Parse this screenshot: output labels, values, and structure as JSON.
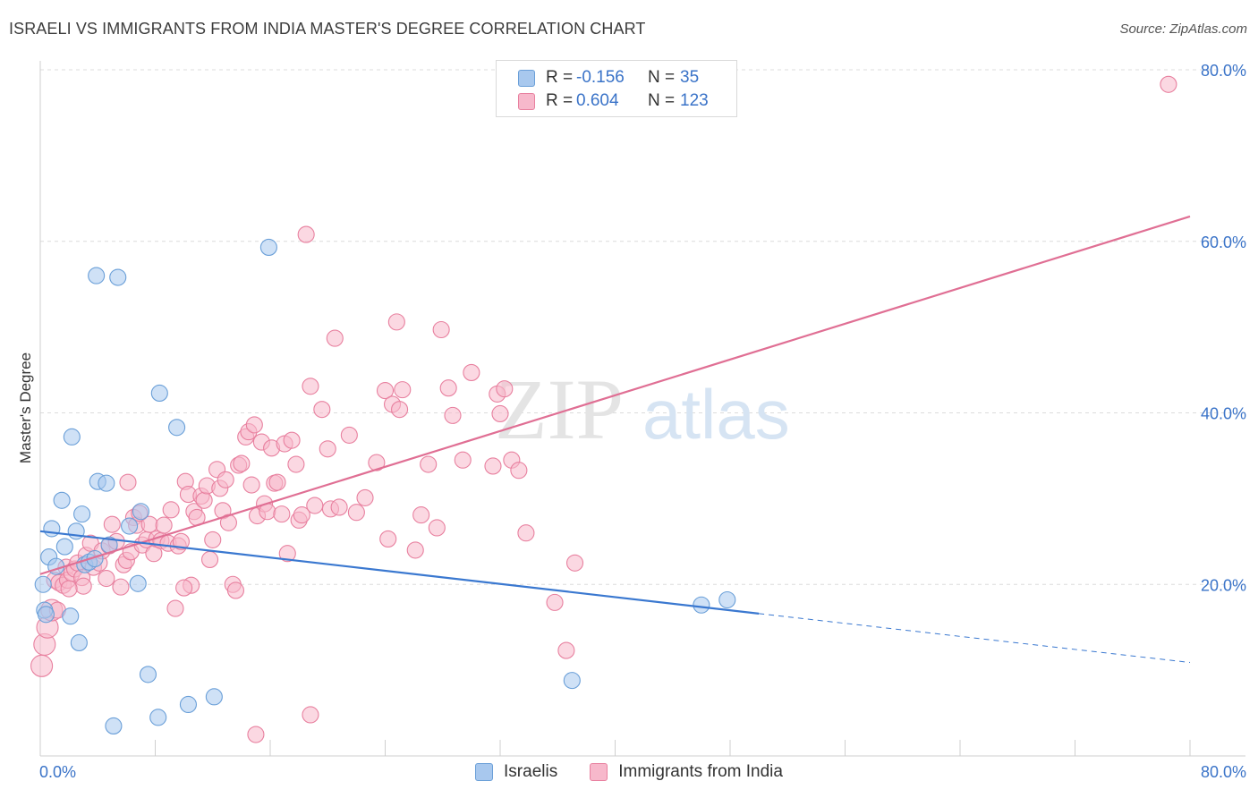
{
  "header": {
    "title": "ISRAELI VS IMMIGRANTS FROM INDIA MASTER'S DEGREE CORRELATION CHART",
    "source": "Source: ZipAtlas.com"
  },
  "watermark": {
    "zip": "ZIP",
    "atlas": "atlas"
  },
  "legend_top": [
    {
      "r_label": "R =",
      "r_value": "-0.156",
      "n_label": "N =",
      "n_value": "35",
      "color": "#a8c8ee",
      "border": "#6a9fd8"
    },
    {
      "r_label": "R =",
      "r_value": "0.604",
      "n_label": "N =",
      "n_value": "123",
      "color": "#f7b8cb",
      "border": "#e8809f"
    }
  ],
  "legend_bottom": [
    {
      "label": "Israelis",
      "color": "#a8c8ee",
      "border": "#6a9fd8"
    },
    {
      "label": "Immigrants from India",
      "color": "#f7b8cb",
      "border": "#e8809f"
    }
  ],
  "chart_data": {
    "type": "scatter",
    "title": "ISRAELI VS IMMIGRANTS FROM INDIA MASTER'S DEGREE CORRELATION CHART",
    "xlabel": "",
    "ylabel": "Master's Degree",
    "xlim": [
      0,
      80
    ],
    "ylim": [
      0,
      80
    ],
    "x_tick_labels": [
      "0.0%",
      "80.0%"
    ],
    "y_tick_labels": [
      "20.0%",
      "40.0%",
      "60.0%",
      "80.0%"
    ],
    "y_ticks": [
      20,
      40,
      60,
      80
    ],
    "grid": true,
    "legend_position": "top-center",
    "series": [
      {
        "name": "Israelis",
        "color": "#6a9fd8",
        "fill": "#a8c8ee",
        "r": -0.156,
        "n": 35,
        "trend": {
          "x0": 0,
          "y0": 26.2,
          "x1": 50,
          "y1": 16.6,
          "dash_x1": 80,
          "dash_y1": 10.9,
          "color": "#3a78d0"
        },
        "points": [
          [
            0.2,
            20.0
          ],
          [
            0.3,
            17.0
          ],
          [
            0.6,
            23.2
          ],
          [
            0.8,
            26.5
          ],
          [
            1.1,
            22.1
          ],
          [
            1.5,
            29.8
          ],
          [
            1.7,
            24.4
          ],
          [
            2.1,
            16.3
          ],
          [
            2.5,
            26.2
          ],
          [
            2.7,
            13.2
          ],
          [
            2.9,
            28.2
          ],
          [
            3.1,
            22.3
          ],
          [
            3.4,
            22.6
          ],
          [
            2.2,
            37.2
          ],
          [
            4.0,
            32.0
          ],
          [
            4.6,
            31.8
          ],
          [
            4.8,
            24.6
          ],
          [
            3.8,
            23.0
          ],
          [
            6.2,
            26.8
          ],
          [
            6.8,
            20.1
          ],
          [
            7.0,
            28.5
          ],
          [
            7.5,
            9.5
          ],
          [
            8.2,
            4.5
          ],
          [
            8.3,
            42.3
          ],
          [
            9.5,
            38.3
          ],
          [
            10.3,
            6.0
          ],
          [
            12.1,
            6.9
          ],
          [
            5.1,
            3.5
          ],
          [
            3.9,
            56.0
          ],
          [
            5.4,
            55.8
          ],
          [
            15.9,
            59.3
          ],
          [
            37.0,
            8.8
          ],
          [
            46.0,
            17.6
          ],
          [
            47.8,
            18.2
          ],
          [
            0.4,
            16.5
          ]
        ]
      },
      {
        "name": "Immigrants from India",
        "color": "#e8809f",
        "fill": "#f7b8cb",
        "r": 0.604,
        "n": 123,
        "trend": {
          "x0": 0,
          "y0": 21.2,
          "x1": 80,
          "y1": 62.9,
          "color": "#e06f94"
        },
        "points": [
          [
            0.1,
            10.5
          ],
          [
            0.3,
            13.0
          ],
          [
            0.5,
            15.0
          ],
          [
            0.8,
            17.0
          ],
          [
            1.0,
            20.5
          ],
          [
            1.3,
            20.2
          ],
          [
            1.6,
            19.9
          ],
          [
            1.8,
            22.0
          ],
          [
            1.9,
            20.5
          ],
          [
            2.2,
            21.3
          ],
          [
            2.4,
            21.8
          ],
          [
            2.6,
            22.5
          ],
          [
            2.9,
            20.8
          ],
          [
            3.2,
            23.4
          ],
          [
            3.5,
            24.8
          ],
          [
            3.7,
            22.0
          ],
          [
            4.1,
            22.5
          ],
          [
            4.3,
            23.9
          ],
          [
            4.6,
            20.7
          ],
          [
            4.8,
            24.5
          ],
          [
            5.0,
            27.0
          ],
          [
            5.3,
            25.0
          ],
          [
            5.6,
            19.7
          ],
          [
            5.8,
            22.3
          ],
          [
            6.0,
            22.8
          ],
          [
            6.3,
            23.8
          ],
          [
            6.5,
            27.8
          ],
          [
            6.7,
            26.9
          ],
          [
            6.9,
            28.3
          ],
          [
            7.1,
            24.6
          ],
          [
            7.4,
            25.2
          ],
          [
            7.6,
            27.0
          ],
          [
            7.9,
            23.6
          ],
          [
            8.1,
            25.3
          ],
          [
            8.4,
            25.1
          ],
          [
            8.6,
            26.9
          ],
          [
            8.9,
            24.8
          ],
          [
            9.1,
            28.7
          ],
          [
            9.4,
            17.2
          ],
          [
            9.6,
            24.5
          ],
          [
            9.8,
            25.0
          ],
          [
            10.1,
            32.0
          ],
          [
            10.3,
            30.5
          ],
          [
            10.5,
            19.9
          ],
          [
            10.7,
            28.5
          ],
          [
            10.9,
            27.8
          ],
          [
            11.2,
            30.3
          ],
          [
            11.4,
            29.8
          ],
          [
            11.6,
            31.5
          ],
          [
            11.8,
            22.9
          ],
          [
            12.0,
            25.2
          ],
          [
            12.3,
            33.4
          ],
          [
            12.5,
            31.2
          ],
          [
            12.7,
            28.6
          ],
          [
            12.9,
            32.2
          ],
          [
            13.1,
            27.2
          ],
          [
            13.4,
            20.0
          ],
          [
            13.6,
            19.3
          ],
          [
            13.8,
            33.9
          ],
          [
            14.0,
            34.1
          ],
          [
            14.3,
            37.2
          ],
          [
            14.5,
            37.8
          ],
          [
            14.7,
            31.6
          ],
          [
            14.9,
            38.6
          ],
          [
            15.1,
            28.0
          ],
          [
            15.4,
            36.6
          ],
          [
            15.6,
            29.4
          ],
          [
            15.8,
            28.5
          ],
          [
            16.1,
            35.9
          ],
          [
            16.3,
            31.8
          ],
          [
            16.5,
            31.9
          ],
          [
            16.8,
            28.2
          ],
          [
            17.0,
            36.4
          ],
          [
            17.2,
            23.6
          ],
          [
            17.5,
            36.8
          ],
          [
            17.8,
            34.0
          ],
          [
            18.0,
            27.5
          ],
          [
            18.2,
            28.1
          ],
          [
            18.5,
            60.8
          ],
          [
            18.8,
            43.1
          ],
          [
            19.1,
            29.2
          ],
          [
            19.6,
            40.4
          ],
          [
            20.0,
            35.8
          ],
          [
            20.2,
            28.8
          ],
          [
            20.5,
            48.7
          ],
          [
            20.8,
            29.0
          ],
          [
            21.5,
            37.4
          ],
          [
            22.0,
            28.4
          ],
          [
            22.6,
            30.1
          ],
          [
            23.4,
            34.2
          ],
          [
            24.0,
            42.6
          ],
          [
            24.2,
            25.3
          ],
          [
            24.5,
            41.0
          ],
          [
            25.0,
            40.4
          ],
          [
            25.2,
            42.7
          ],
          [
            24.8,
            50.6
          ],
          [
            26.5,
            28.1
          ],
          [
            27.0,
            34.0
          ],
          [
            27.6,
            26.6
          ],
          [
            27.9,
            49.7
          ],
          [
            28.4,
            42.9
          ],
          [
            28.7,
            39.7
          ],
          [
            29.4,
            34.5
          ],
          [
            30.0,
            44.7
          ],
          [
            31.5,
            33.8
          ],
          [
            31.8,
            42.2
          ],
          [
            32.0,
            39.9
          ],
          [
            32.3,
            42.8
          ],
          [
            32.8,
            34.5
          ],
          [
            33.3,
            33.3
          ],
          [
            33.8,
            26.0
          ],
          [
            35.8,
            17.9
          ],
          [
            36.6,
            12.3
          ],
          [
            37.2,
            22.5
          ],
          [
            15.0,
            2.5
          ],
          [
            18.8,
            4.8
          ],
          [
            26.1,
            24.0
          ],
          [
            10.0,
            19.6
          ],
          [
            6.1,
            31.9
          ],
          [
            78.5,
            78.3
          ],
          [
            3.0,
            19.8
          ],
          [
            2.0,
            19.5
          ],
          [
            1.2,
            17.0
          ]
        ]
      }
    ]
  }
}
